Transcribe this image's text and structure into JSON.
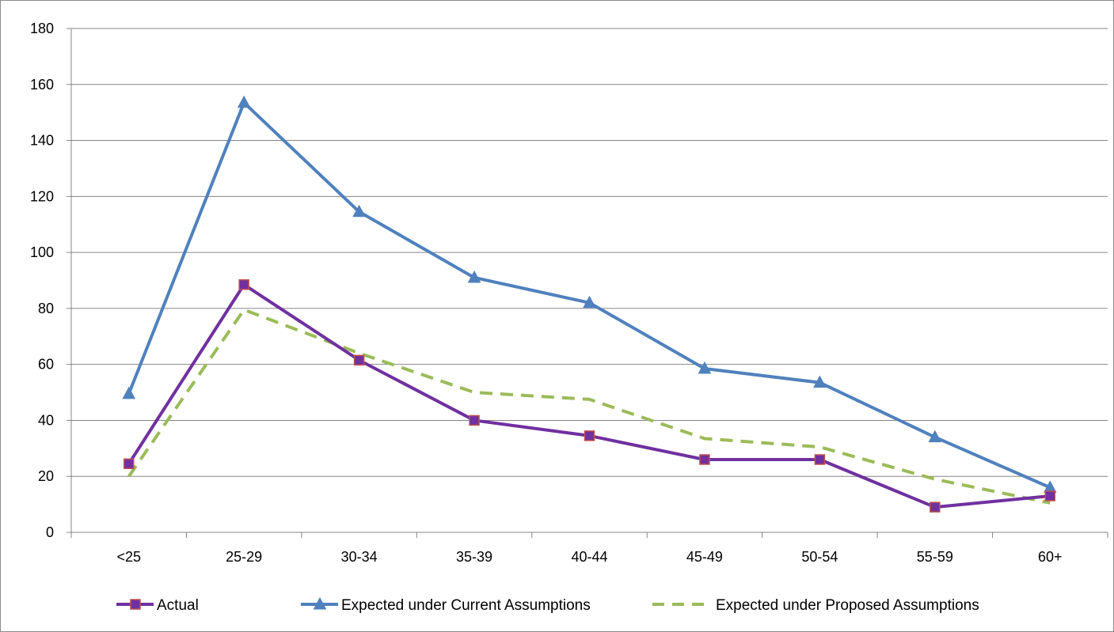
{
  "chart_data": {
    "type": "line",
    "categories": [
      "<25",
      "25-29",
      "30-34",
      "35-39",
      "40-44",
      "45-49",
      "50-54",
      "55-59",
      "60+"
    ],
    "ylim": [
      0,
      180
    ],
    "yticks": [
      0,
      20,
      40,
      60,
      80,
      100,
      120,
      140,
      160,
      180
    ],
    "grid": true,
    "legend_position": "bottom",
    "title": "",
    "xlabel": "",
    "ylabel": "",
    "series": [
      {
        "name": "Actual",
        "values": [
          24.5,
          88.5,
          61.5,
          40,
          34.5,
          26,
          26,
          9,
          13
        ],
        "color": "#7030a0",
        "marker": "square",
        "marker_fill": "#7030a0",
        "marker_stroke": "#c0504d",
        "dashed": false
      },
      {
        "name": "Expected under Current Assumptions",
        "values": [
          49.5,
          153.5,
          114.5,
          91,
          82,
          58.5,
          53.5,
          34,
          16
        ],
        "color": "#4f81bd",
        "marker": "triangle",
        "dashed": false
      },
      {
        "name": "Expected under Proposed Assumptions",
        "values": [
          20,
          79.5,
          64,
          50,
          47.5,
          33.5,
          30.5,
          19,
          10.5
        ],
        "color": "#9bbb59",
        "marker": "none",
        "dashed": true
      }
    ]
  }
}
